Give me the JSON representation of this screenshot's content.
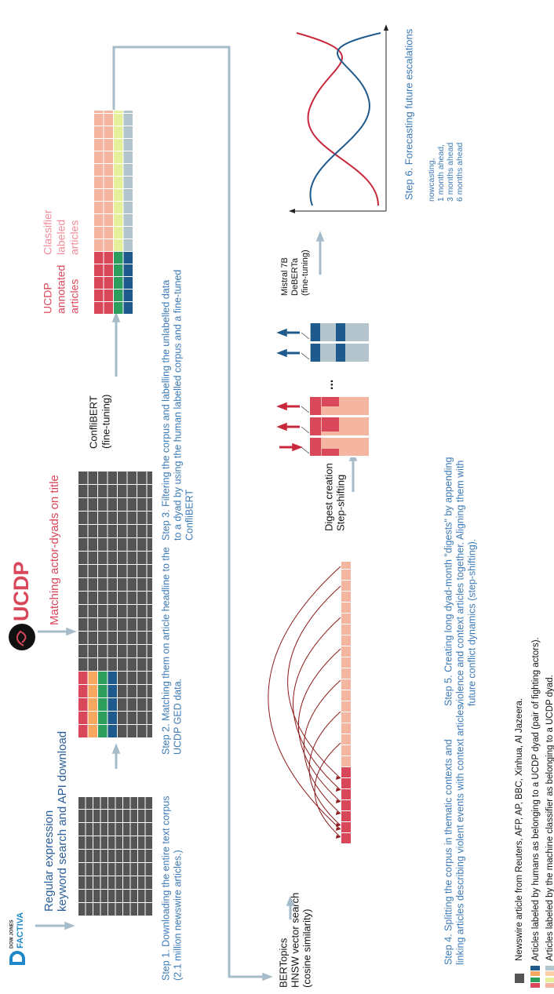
{
  "logos": {
    "factiva_top": "DOW JONES",
    "factiva": "FACTIVA",
    "ucdp": "UCDP"
  },
  "annotations": {
    "search": [
      "Regular expression",
      "keyword search and API download"
    ],
    "matching": "Matching actor-dyads on title",
    "confli": [
      "ConfliBERT",
      "(fine-tuning)"
    ],
    "ucdp_annotated": [
      "UCDP",
      "annotated",
      "articles"
    ],
    "classifier": [
      "Classifier",
      "labeled",
      "articles"
    ],
    "bertopics": [
      "BERTopics",
      "HNSW vector search",
      "(cosine similarity)"
    ],
    "digest": [
      "Digest creation",
      "Step-shifting"
    ],
    "dots": "...",
    "mistral": [
      "Mistral 7B",
      "DeBERTa",
      "(fine-tuning)"
    ]
  },
  "steps": [
    [
      "Step 1. Downloading the entire text corpus",
      "(2.1 million newswire articles.)"
    ],
    [
      "Step 2. Matching them on article headline to the",
      "UCDP GED data."
    ],
    [
      "Step 3. Filtering the corpus and labelling the unlabelled data",
      "to a dyad by using the human labelled corpus and a fine-tuned",
      "ConfliBERT"
    ],
    [
      "Step 4. Splitting the corpus in thematic contexts and",
      "linking articles describing violent events with context articles."
    ],
    [
      "Step 5. Creating long dyad-month \"digests\" by appending",
      "violence and context articles together. Aligning them with",
      "future conflict dynamics (step-shifting)."
    ],
    [
      "Step 6. Forecasting future escalations"
    ]
  ],
  "horizons": [
    "nowcasting,",
    "1 month ahead,",
    "3 months ahead",
    "6 months ahead"
  ],
  "legend": [
    "Newswire article from Reuters, AFP, AP, BBC, Xinhua, Al Jazeera.",
    "Articles labeled by humans as belonging to a UCDP dyad (pair of fighting actors).",
    "Articles labeled by the machine classifier as belonging to a UCDP dyad."
  ]
}
